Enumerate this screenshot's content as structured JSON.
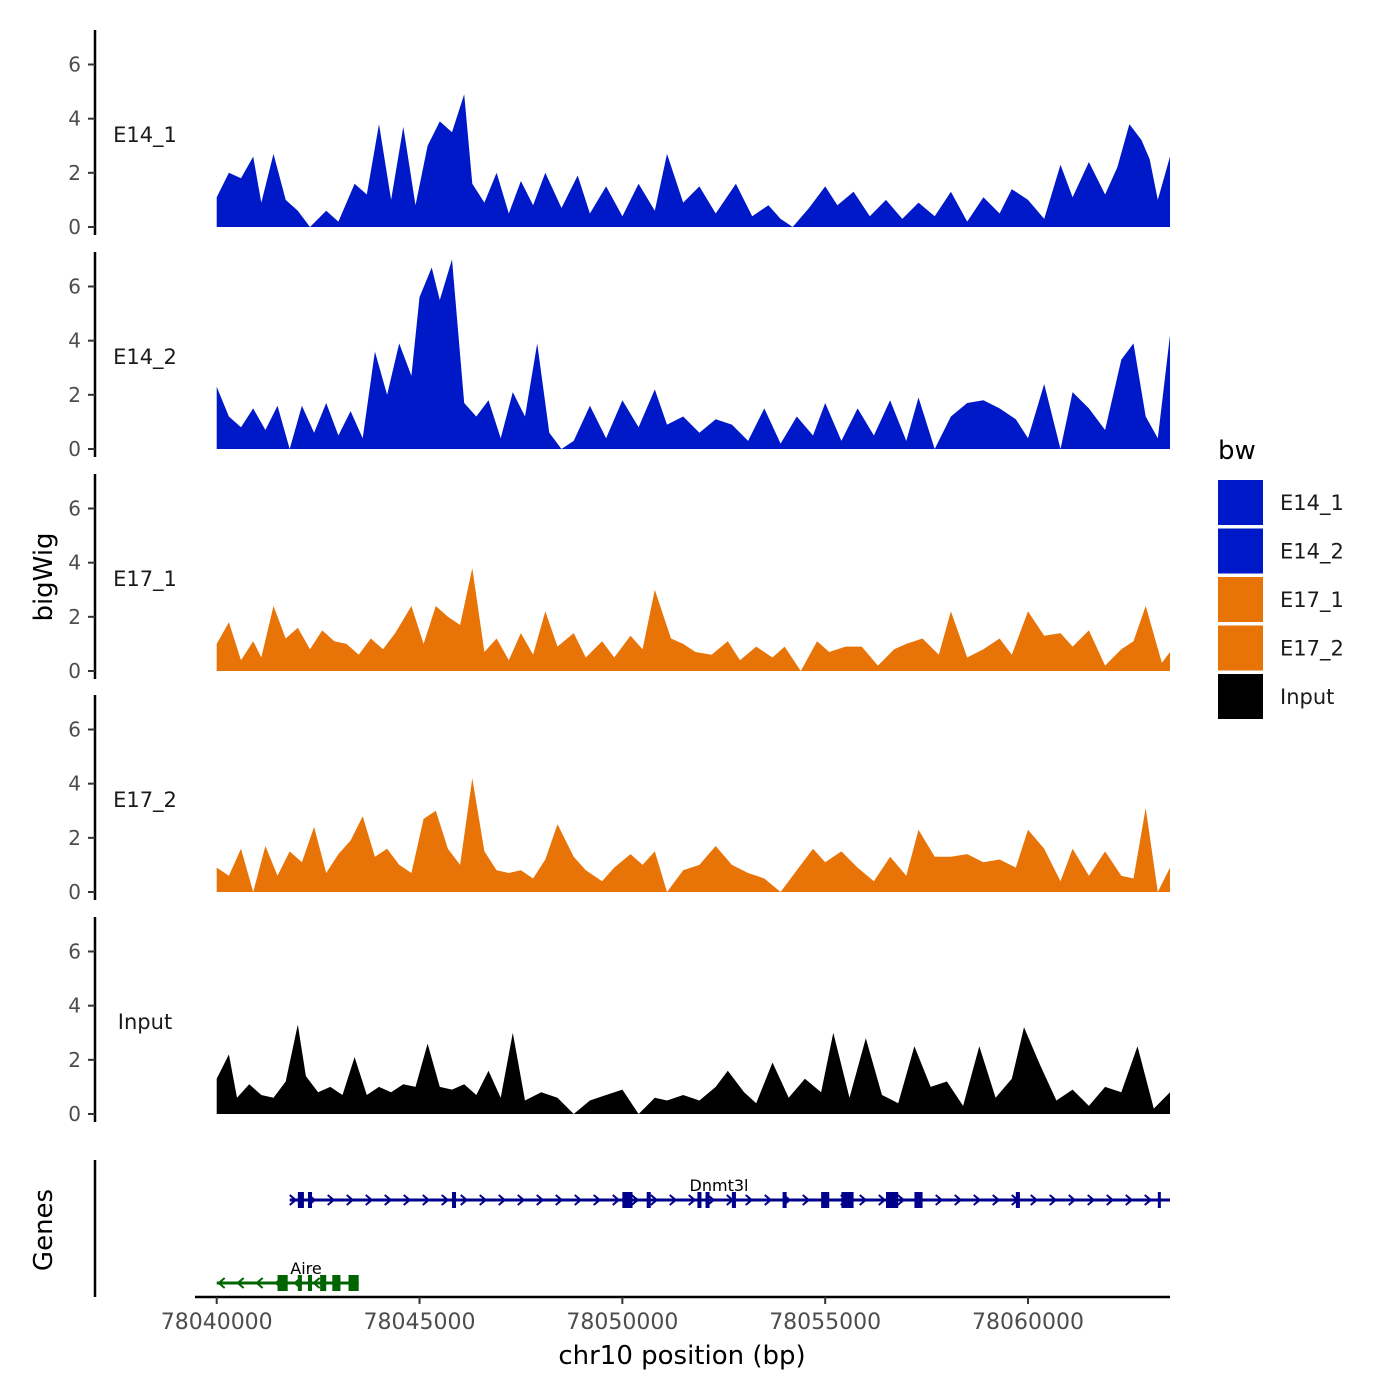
{
  "chart_data": {
    "type": "area",
    "title": "",
    "xlabel": "chr10 position (bp)",
    "ylabel": "bigWig",
    "genes_panel_label": "Genes",
    "x_range": [
      78037000,
      78063500
    ],
    "x_ticks": [
      78040000,
      78045000,
      78050000,
      78055000,
      78060000
    ],
    "x_tick_labels": [
      "78040000",
      "78045000",
      "78050000",
      "78055000",
      "78060000"
    ],
    "ylim": [
      0,
      7.2
    ],
    "y_ticks": [
      0,
      2,
      4,
      6
    ],
    "y_tick_labels": [
      "0",
      "2",
      "4",
      "6"
    ],
    "grid": false,
    "legend_position": "right",
    "legend": {
      "title": "bw",
      "entries": [
        {
          "label": "E14_1",
          "color": "#0019C8"
        },
        {
          "label": "E14_2",
          "color": "#0019C8"
        },
        {
          "label": "E17_1",
          "color": "#E87306"
        },
        {
          "label": "E17_2",
          "color": "#E87306"
        },
        {
          "label": "Input",
          "color": "#000000"
        }
      ]
    },
    "series": [
      {
        "name": "E14_1",
        "color": "#0019C8",
        "x": [
          78040000,
          78040300,
          78040600,
          78040900,
          78041100,
          78041400,
          78041700,
          78042000,
          78042300,
          78042700,
          78043000,
          78043400,
          78043700,
          78044000,
          78044300,
          78044600,
          78044900,
          78045200,
          78045500,
          78045800,
          78046100,
          78046300,
          78046600,
          78046900,
          78047200,
          78047500,
          78047800,
          78048100,
          78048500,
          78048900,
          78049200,
          78049600,
          78050000,
          78050400,
          78050800,
          78051100,
          78051500,
          78051900,
          78052300,
          78052800,
          78053200,
          78053600,
          78053900,
          78054200,
          78054600,
          78055000,
          78055300,
          78055700,
          78056100,
          78056500,
          78056900,
          78057300,
          78057700,
          78058100,
          78058500,
          78058900,
          78059300,
          78059600,
          78060000,
          78060400,
          78060800,
          78061100,
          78061500,
          78061900,
          78062200,
          78062500,
          78062800,
          78063000,
          78063200,
          78063500
        ],
        "values": [
          1.1,
          2.0,
          1.8,
          2.6,
          0.9,
          2.7,
          1.0,
          0.6,
          0.0,
          0.6,
          0.2,
          1.6,
          1.2,
          3.8,
          1.0,
          3.7,
          0.8,
          3.0,
          3.9,
          3.5,
          4.9,
          1.6,
          0.9,
          2.0,
          0.5,
          1.7,
          0.8,
          2.0,
          0.7,
          1.9,
          0.5,
          1.5,
          0.4,
          1.6,
          0.6,
          2.7,
          0.9,
          1.5,
          0.5,
          1.6,
          0.4,
          0.8,
          0.3,
          0.0,
          0.7,
          1.5,
          0.8,
          1.3,
          0.4,
          1.0,
          0.3,
          0.9,
          0.4,
          1.3,
          0.2,
          1.1,
          0.5,
          1.4,
          1.0,
          0.3,
          2.3,
          1.1,
          2.4,
          1.2,
          2.2,
          3.8,
          3.2,
          2.5,
          1.0,
          2.6
        ]
      },
      {
        "name": "E14_2",
        "color": "#0019C8",
        "x": [
          78040000,
          78040300,
          78040600,
          78040900,
          78041200,
          78041500,
          78041800,
          78042100,
          78042400,
          78042700,
          78043000,
          78043300,
          78043600,
          78043900,
          78044200,
          78044500,
          78044800,
          78045000,
          78045300,
          78045500,
          78045800,
          78046100,
          78046400,
          78046700,
          78047000,
          78047300,
          78047600,
          78047900,
          78048200,
          78048500,
          78048800,
          78049200,
          78049600,
          78050000,
          78050400,
          78050800,
          78051100,
          78051500,
          78051900,
          78052300,
          78052700,
          78053100,
          78053500,
          78053900,
          78054300,
          78054700,
          78055000,
          78055400,
          78055800,
          78056200,
          78056600,
          78057000,
          78057300,
          78057700,
          78058100,
          78058500,
          78058900,
          78059300,
          78059700,
          78060000,
          78060400,
          78060800,
          78061100,
          78061500,
          78061900,
          78062300,
          78062600,
          78062900,
          78063200,
          78063500
        ],
        "values": [
          2.3,
          1.2,
          0.8,
          1.5,
          0.7,
          1.6,
          0.0,
          1.6,
          0.6,
          1.7,
          0.5,
          1.4,
          0.4,
          3.6,
          2.0,
          3.9,
          2.7,
          5.6,
          6.7,
          5.5,
          7.0,
          1.7,
          1.2,
          1.8,
          0.4,
          2.1,
          1.2,
          3.9,
          0.6,
          0.0,
          0.3,
          1.6,
          0.4,
          1.8,
          0.8,
          2.2,
          0.9,
          1.2,
          0.6,
          1.1,
          0.9,
          0.3,
          1.5,
          0.2,
          1.2,
          0.5,
          1.7,
          0.3,
          1.5,
          0.5,
          1.8,
          0.3,
          1.9,
          0.0,
          1.2,
          1.7,
          1.8,
          1.5,
          1.1,
          0.4,
          2.4,
          0.0,
          2.1,
          1.5,
          0.7,
          3.3,
          3.9,
          1.2,
          0.4,
          4.2
        ]
      },
      {
        "name": "E17_1",
        "color": "#E87306",
        "x": [
          78040000,
          78040300,
          78040600,
          78040900,
          78041100,
          78041400,
          78041700,
          78042000,
          78042300,
          78042600,
          78042900,
          78043200,
          78043500,
          78043800,
          78044100,
          78044400,
          78044800,
          78045100,
          78045400,
          78045700,
          78046000,
          78046300,
          78046600,
          78046900,
          78047200,
          78047500,
          78047800,
          78048100,
          78048400,
          78048800,
          78049100,
          78049500,
          78049800,
          78050200,
          78050500,
          78050800,
          78051200,
          78051500,
          78051800,
          78052200,
          78052600,
          78052900,
          78053300,
          78053700,
          78054000,
          78054400,
          78054800,
          78055100,
          78055500,
          78055900,
          78056300,
          78056700,
          78057000,
          78057400,
          78057800,
          78058100,
          78058500,
          78058900,
          78059300,
          78059600,
          78060000,
          78060400,
          78060800,
          78061100,
          78061500,
          78061900,
          78062300,
          78062600,
          78062900,
          78063300,
          78063500
        ],
        "values": [
          1.0,
          1.8,
          0.4,
          1.1,
          0.5,
          2.4,
          1.2,
          1.6,
          0.8,
          1.5,
          1.1,
          1.0,
          0.6,
          1.2,
          0.8,
          1.4,
          2.4,
          1.0,
          2.4,
          2.0,
          1.7,
          3.8,
          0.7,
          1.2,
          0.4,
          1.4,
          0.6,
          2.2,
          0.9,
          1.4,
          0.5,
          1.1,
          0.5,
          1.3,
          0.8,
          3.0,
          1.2,
          1.0,
          0.7,
          0.6,
          1.1,
          0.4,
          0.9,
          0.5,
          0.9,
          0.0,
          1.1,
          0.7,
          0.9,
          0.9,
          0.2,
          0.8,
          1.0,
          1.2,
          0.6,
          2.2,
          0.5,
          0.8,
          1.2,
          0.6,
          2.2,
          1.3,
          1.4,
          0.9,
          1.5,
          0.2,
          0.8,
          1.1,
          2.4,
          0.3,
          0.7
        ]
      },
      {
        "name": "E17_2",
        "color": "#E87306",
        "x": [
          78040000,
          78040300,
          78040600,
          78040900,
          78041200,
          78041500,
          78041800,
          78042100,
          78042400,
          78042700,
          78043000,
          78043300,
          78043600,
          78043900,
          78044200,
          78044500,
          78044800,
          78045100,
          78045400,
          78045700,
          78046000,
          78046300,
          78046600,
          78046900,
          78047200,
          78047500,
          78047800,
          78048100,
          78048400,
          78048800,
          78049100,
          78049500,
          78049800,
          78050200,
          78050500,
          78050800,
          78051100,
          78051500,
          78051900,
          78052300,
          78052700,
          78053100,
          78053500,
          78053900,
          78054300,
          78054700,
          78055000,
          78055400,
          78055800,
          78056200,
          78056600,
          78057000,
          78057300,
          78057700,
          78058100,
          78058500,
          78058900,
          78059300,
          78059700,
          78060000,
          78060400,
          78060800,
          78061100,
          78061500,
          78061900,
          78062300,
          78062600,
          78062900,
          78063200,
          78063500
        ],
        "values": [
          0.9,
          0.6,
          1.6,
          0.0,
          1.7,
          0.6,
          1.5,
          1.1,
          2.4,
          0.7,
          1.4,
          1.9,
          2.8,
          1.3,
          1.6,
          1.0,
          0.7,
          2.7,
          3.0,
          1.6,
          1.0,
          4.2,
          1.5,
          0.8,
          0.7,
          0.8,
          0.5,
          1.2,
          2.5,
          1.3,
          0.8,
          0.4,
          0.9,
          1.4,
          1.0,
          1.5,
          0.0,
          0.8,
          1.0,
          1.7,
          1.0,
          0.7,
          0.5,
          0.0,
          0.8,
          1.6,
          1.1,
          1.5,
          0.9,
          0.4,
          1.3,
          0.6,
          2.3,
          1.3,
          1.3,
          1.4,
          1.1,
          1.2,
          0.9,
          2.3,
          1.6,
          0.4,
          1.6,
          0.6,
          1.5,
          0.6,
          0.5,
          3.1,
          0.0,
          0.9
        ]
      },
      {
        "name": "Input",
        "color": "#000000",
        "x": [
          78040000,
          78040300,
          78040500,
          78040800,
          78041100,
          78041400,
          78041700,
          78042000,
          78042200,
          78042500,
          78042800,
          78043100,
          78043400,
          78043700,
          78044000,
          78044300,
          78044600,
          78044900,
          78045200,
          78045500,
          78045800,
          78046100,
          78046400,
          78046700,
          78047000,
          78047300,
          78047600,
          78048000,
          78048400,
          78048800,
          78049200,
          78049600,
          78050000,
          78050400,
          78050800,
          78051100,
          78051500,
          78051900,
          78052300,
          78052600,
          78053000,
          78053300,
          78053700,
          78054100,
          78054500,
          78054900,
          78055200,
          78055600,
          78056000,
          78056400,
          78056800,
          78057200,
          78057600,
          78058000,
          78058400,
          78058800,
          78059200,
          78059600,
          78059900,
          78060300,
          78060700,
          78061100,
          78061500,
          78061900,
          78062300,
          78062700,
          78063100,
          78063500
        ],
        "values": [
          1.3,
          2.2,
          0.6,
          1.1,
          0.7,
          0.6,
          1.2,
          3.3,
          1.4,
          0.8,
          1.0,
          0.7,
          2.1,
          0.7,
          1.0,
          0.8,
          1.1,
          1.0,
          2.6,
          1.0,
          0.9,
          1.1,
          0.7,
          1.6,
          0.6,
          3.0,
          0.5,
          0.8,
          0.6,
          0.0,
          0.5,
          0.7,
          0.9,
          0.0,
          0.6,
          0.5,
          0.7,
          0.5,
          1.0,
          1.6,
          0.8,
          0.4,
          1.9,
          0.6,
          1.3,
          0.8,
          3.0,
          0.6,
          2.8,
          0.7,
          0.4,
          2.5,
          1.0,
          1.2,
          0.3,
          2.5,
          0.6,
          1.3,
          3.2,
          1.8,
          0.5,
          0.9,
          0.3,
          1.0,
          0.8,
          2.5,
          0.2,
          0.8
        ]
      }
    ],
    "genes": [
      {
        "name": "Aire",
        "strand": "-",
        "color": "#006400",
        "start": 78040000,
        "end": 78043500,
        "exons": [
          [
            78041500,
            78041750
          ],
          [
            78042000,
            78042100
          ],
          [
            78042250,
            78042350
          ],
          [
            78042550,
            78042700
          ],
          [
            78042850,
            78043050
          ],
          [
            78043250,
            78043500
          ]
        ]
      },
      {
        "name": "Dnmt3l",
        "strand": "+",
        "color": "#00008B",
        "start": 78041800,
        "end": 78063500,
        "exons": [
          [
            78042000,
            78042150
          ],
          [
            78042250,
            78042350
          ],
          [
            78045800,
            78045900
          ],
          [
            78050000,
            78050250
          ],
          [
            78050600,
            78050700
          ],
          [
            78051850,
            78051950
          ],
          [
            78052050,
            78052150
          ],
          [
            78052700,
            78052800
          ],
          [
            78053950,
            78054050
          ],
          [
            78054900,
            78055100
          ],
          [
            78055400,
            78055700
          ],
          [
            78056500,
            78056800
          ],
          [
            78057200,
            78057400
          ],
          [
            78059700,
            78059800
          ],
          [
            78063200,
            78063600
          ]
        ]
      }
    ]
  }
}
